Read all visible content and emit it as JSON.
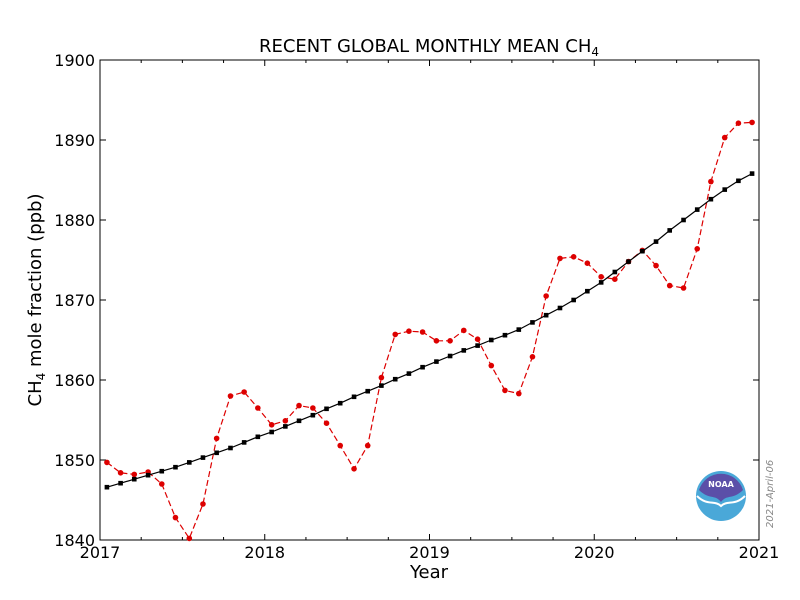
{
  "chart_data": {
    "type": "line",
    "title_main": "RECENT GLOBAL MONTHLY MEAN CH",
    "title_sub": "4",
    "xlabel": "Year",
    "ylabel_main": "CH",
    "ylabel_sub": "4",
    "ylabel_rest": " mole fraction (ppb)",
    "xlim": [
      2017,
      2021
    ],
    "ylim": [
      1840,
      1900
    ],
    "xticks": [
      "2017",
      "2018",
      "2019",
      "2020",
      "2021"
    ],
    "yticks": [
      "1840",
      "1850",
      "1860",
      "1870",
      "1880",
      "1890",
      "1900"
    ],
    "grid": false,
    "series": [
      {
        "style": "dashed-red-circles",
        "color": "#dd0000",
        "x": [
          2017.042,
          2017.125,
          2017.208,
          2017.292,
          2017.375,
          2017.458,
          2017.542,
          2017.625,
          2017.708,
          2017.792,
          2017.875,
          2017.958,
          2018.042,
          2018.125,
          2018.208,
          2018.292,
          2018.375,
          2018.458,
          2018.542,
          2018.625,
          2018.708,
          2018.792,
          2018.875,
          2018.958,
          2019.042,
          2019.125,
          2019.208,
          2019.292,
          2019.375,
          2019.458,
          2019.542,
          2019.625,
          2019.708,
          2019.792,
          2019.875,
          2019.958,
          2020.042,
          2020.125,
          2020.208,
          2020.292,
          2020.375,
          2020.458,
          2020.542,
          2020.625,
          2020.708,
          2020.792,
          2020.875,
          2020.958
        ],
        "values": [
          1849.7,
          1848.4,
          1848.2,
          1848.5,
          1847.0,
          1842.8,
          1840.2,
          1844.5,
          1852.7,
          1858.0,
          1858.5,
          1856.5,
          1854.4,
          1854.9,
          1856.8,
          1856.5,
          1854.6,
          1851.8,
          1848.9,
          1851.8,
          1860.3,
          1865.7,
          1866.1,
          1866.0,
          1864.9,
          1864.9,
          1866.2,
          1865.1,
          1861.8,
          1858.7,
          1858.3,
          1862.9,
          1870.5,
          1875.2,
          1875.4,
          1874.6,
          1872.9,
          1872.6,
          1874.8,
          1876.2,
          1874.3,
          1871.8,
          1871.5,
          1876.4,
          1884.8,
          1890.3,
          1892.1,
          1892.2
        ]
      },
      {
        "style": "solid-black-squares",
        "color": "#000000",
        "x": [
          2017.042,
          2017.125,
          2017.208,
          2017.292,
          2017.375,
          2017.458,
          2017.542,
          2017.625,
          2017.708,
          2017.792,
          2017.875,
          2017.958,
          2018.042,
          2018.125,
          2018.208,
          2018.292,
          2018.375,
          2018.458,
          2018.542,
          2018.625,
          2018.708,
          2018.792,
          2018.875,
          2018.958,
          2019.042,
          2019.125,
          2019.208,
          2019.292,
          2019.375,
          2019.458,
          2019.542,
          2019.625,
          2019.708,
          2019.792,
          2019.875,
          2019.958,
          2020.042,
          2020.125,
          2020.208,
          2020.292,
          2020.375,
          2020.458,
          2020.542,
          2020.625,
          2020.708,
          2020.792,
          2020.875,
          2020.958
        ],
        "values": [
          1846.6,
          1847.1,
          1847.6,
          1848.1,
          1848.6,
          1849.1,
          1849.7,
          1850.3,
          1850.9,
          1851.5,
          1852.2,
          1852.9,
          1853.5,
          1854.2,
          1854.9,
          1855.6,
          1856.4,
          1857.1,
          1857.9,
          1858.6,
          1859.3,
          1860.1,
          1860.8,
          1861.6,
          1862.3,
          1863.0,
          1863.7,
          1864.3,
          1865.0,
          1865.6,
          1866.3,
          1867.2,
          1868.1,
          1869.0,
          1870.0,
          1871.1,
          1872.2,
          1873.5,
          1874.8,
          1876.1,
          1877.3,
          1878.7,
          1880.0,
          1881.3,
          1882.6,
          1883.8,
          1884.9,
          1885.8
        ]
      }
    ]
  },
  "logo": {
    "name": "noaa-logo",
    "text": "NOAA",
    "color_top": "#5b4fa8",
    "color_bottom": "#4aa8d8"
  },
  "date_stamp": "2021-April-06"
}
